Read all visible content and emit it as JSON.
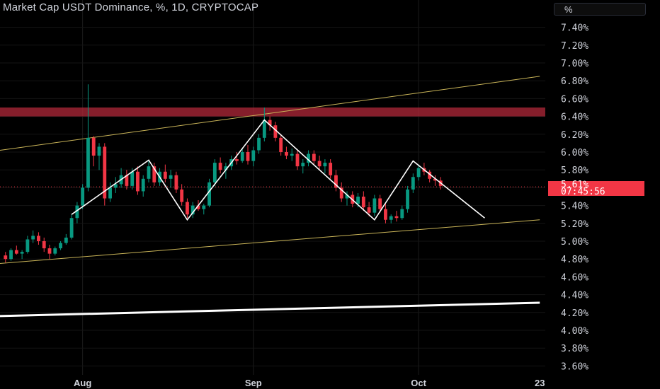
{
  "header": {
    "title": "Market Cap USDT Dominance, %, 1D, CRYPTOCAP",
    "unit_button": "%"
  },
  "price_tag": {
    "price": "5.61%",
    "countdown": "07:45:56"
  },
  "colors": {
    "up": "#089981",
    "down": "#f23645",
    "resistance_zone": "#b2283a",
    "channel": "#c9b458",
    "pattern": "#ffffff",
    "axis_text": "#d1d4dc"
  },
  "chart_data": {
    "type": "candlestick",
    "title": "Market Cap USDT Dominance, %, 1D, CRYPTOCAP",
    "ylabel": "%",
    "ylim": [
      3.5,
      7.5
    ],
    "y_ticks": [
      "7.40%",
      "7.20%",
      "7.00%",
      "6.80%",
      "6.60%",
      "6.40%",
      "6.20%",
      "6.00%",
      "5.80%",
      "5.60%",
      "5.40%",
      "5.20%",
      "5.00%",
      "4.80%",
      "4.60%",
      "4.40%",
      "4.20%",
      "4.00%",
      "3.80%",
      "3.60%"
    ],
    "x_ticks": [
      {
        "label": "Aug",
        "index": 14
      },
      {
        "label": "Sep",
        "index": 45
      },
      {
        "label": "Oct",
        "index": 75
      },
      {
        "label": "23",
        "index": 97
      }
    ],
    "x_range": [
      -1,
      98
    ],
    "current_price": 5.61,
    "candles": [
      [
        4.84,
        4.88,
        4.76,
        4.8
      ],
      [
        4.8,
        4.92,
        4.78,
        4.9
      ],
      [
        4.9,
        4.95,
        4.85,
        4.86
      ],
      [
        4.86,
        4.9,
        4.8,
        4.88
      ],
      [
        4.88,
        5.06,
        4.86,
        5.02
      ],
      [
        5.02,
        5.12,
        4.98,
        5.06
      ],
      [
        5.06,
        5.1,
        4.96,
        5.0
      ],
      [
        5.0,
        5.04,
        4.88,
        4.92
      ],
      [
        4.92,
        4.96,
        4.8,
        4.86
      ],
      [
        4.86,
        4.94,
        4.84,
        4.92
      ],
      [
        4.92,
        5.0,
        4.9,
        4.98
      ],
      [
        4.98,
        5.08,
        4.96,
        5.04
      ],
      [
        5.04,
        5.3,
        5.02,
        5.26
      ],
      [
        5.26,
        5.44,
        5.2,
        5.4
      ],
      [
        5.4,
        5.64,
        5.36,
        5.6
      ],
      [
        5.6,
        6.76,
        5.56,
        6.16
      ],
      [
        6.16,
        6.18,
        5.84,
        5.96
      ],
      [
        5.96,
        6.1,
        5.8,
        6.06
      ],
      [
        6.06,
        6.1,
        5.4,
        5.48
      ],
      [
        5.48,
        5.66,
        5.44,
        5.6
      ],
      [
        5.6,
        5.72,
        5.54,
        5.64
      ],
      [
        5.64,
        5.82,
        5.6,
        5.74
      ],
      [
        5.74,
        5.8,
        5.58,
        5.62
      ],
      [
        5.62,
        5.82,
        5.58,
        5.78
      ],
      [
        5.78,
        5.84,
        5.52,
        5.56
      ],
      [
        5.56,
        5.74,
        5.5,
        5.7
      ],
      [
        5.7,
        5.9,
        5.66,
        5.84
      ],
      [
        5.84,
        5.88,
        5.62,
        5.66
      ],
      [
        5.66,
        5.82,
        5.62,
        5.78
      ],
      [
        5.78,
        5.86,
        5.66,
        5.7
      ],
      [
        5.7,
        5.8,
        5.6,
        5.74
      ],
      [
        5.74,
        5.78,
        5.54,
        5.58
      ],
      [
        5.58,
        5.64,
        5.4,
        5.44
      ],
      [
        5.44,
        5.48,
        5.26,
        5.3
      ],
      [
        5.3,
        5.44,
        5.26,
        5.4
      ],
      [
        5.4,
        5.46,
        5.34,
        5.36
      ],
      [
        5.36,
        5.42,
        5.3,
        5.4
      ],
      [
        5.4,
        5.7,
        5.38,
        5.66
      ],
      [
        5.66,
        5.92,
        5.62,
        5.88
      ],
      [
        5.88,
        5.94,
        5.76,
        5.8
      ],
      [
        5.8,
        5.88,
        5.7,
        5.84
      ],
      [
        5.84,
        5.96,
        5.8,
        5.92
      ],
      [
        5.92,
        6.0,
        5.86,
        5.9
      ],
      [
        5.9,
        6.04,
        5.88,
        6.0
      ],
      [
        6.0,
        6.08,
        5.86,
        5.9
      ],
      [
        5.9,
        6.06,
        5.84,
        6.02
      ],
      [
        6.02,
        6.2,
        5.98,
        6.16
      ],
      [
        6.16,
        6.5,
        6.12,
        6.36
      ],
      [
        6.36,
        6.4,
        6.24,
        6.3
      ],
      [
        6.3,
        6.34,
        6.12,
        6.16
      ],
      [
        6.16,
        6.2,
        5.96,
        6.0
      ],
      [
        6.0,
        6.06,
        5.92,
        5.96
      ],
      [
        5.96,
        6.04,
        5.9,
        5.98
      ],
      [
        5.98,
        6.02,
        5.8,
        5.84
      ],
      [
        5.84,
        5.92,
        5.76,
        5.88
      ],
      [
        5.88,
        6.02,
        5.84,
        5.98
      ],
      [
        5.98,
        6.02,
        5.86,
        5.9
      ],
      [
        5.9,
        5.96,
        5.8,
        5.84
      ],
      [
        5.84,
        5.92,
        5.76,
        5.88
      ],
      [
        5.88,
        5.92,
        5.7,
        5.74
      ],
      [
        5.74,
        5.8,
        5.56,
        5.6
      ],
      [
        5.6,
        5.66,
        5.44,
        5.48
      ],
      [
        5.48,
        5.56,
        5.4,
        5.52
      ],
      [
        5.52,
        5.56,
        5.38,
        5.42
      ],
      [
        5.42,
        5.54,
        5.38,
        5.5
      ],
      [
        5.5,
        5.56,
        5.34,
        5.38
      ],
      [
        5.38,
        5.44,
        5.28,
        5.32
      ],
      [
        5.32,
        5.52,
        5.28,
        5.48
      ],
      [
        5.48,
        5.52,
        5.32,
        5.36
      ],
      [
        5.36,
        5.42,
        5.2,
        5.24
      ],
      [
        5.24,
        5.3,
        5.2,
        5.28
      ],
      [
        5.28,
        5.34,
        5.22,
        5.26
      ],
      [
        5.26,
        5.4,
        5.24,
        5.36
      ],
      [
        5.36,
        5.62,
        5.32,
        5.58
      ],
      [
        5.58,
        5.76,
        5.54,
        5.72
      ],
      [
        5.72,
        5.86,
        5.68,
        5.82
      ],
      [
        5.82,
        5.88,
        5.74,
        5.78
      ],
      [
        5.78,
        5.8,
        5.66,
        5.7
      ],
      [
        5.7,
        5.74,
        5.62,
        5.68
      ],
      [
        5.68,
        5.72,
        5.58,
        5.62
      ]
    ],
    "resistance_zone": {
      "from": 6.4,
      "to": 6.5
    },
    "trendlines": [
      {
        "name": "channel-upper",
        "color": "#c9b458",
        "width": 1,
        "points": [
          [
            -1,
            6.02
          ],
          [
            97,
            6.85
          ]
        ]
      },
      {
        "name": "channel-lower",
        "color": "#c9b458",
        "width": 1,
        "points": [
          [
            -1,
            4.75
          ],
          [
            97,
            5.24
          ]
        ]
      },
      {
        "name": "long-term-support",
        "color": "#ffffff",
        "width": 3,
        "points": [
          [
            -1,
            4.16
          ],
          [
            97,
            4.31
          ]
        ]
      }
    ],
    "pattern_path": [
      [
        12,
        5.3
      ],
      [
        26,
        5.91
      ],
      [
        33,
        5.24
      ],
      [
        47,
        6.36
      ],
      [
        67,
        5.24
      ],
      [
        74,
        5.9
      ],
      [
        87,
        5.26
      ]
    ]
  }
}
